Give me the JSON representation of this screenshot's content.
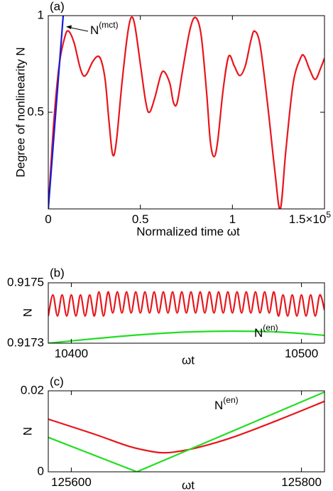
{
  "chart_data": [
    {
      "type": "line",
      "panel_label": "(a)",
      "ylabel": "Degree of nonlinearity N",
      "xlabel": "Normalized time ωt",
      "xlim": [
        0,
        1.5
      ],
      "ylim": [
        0,
        1
      ],
      "xticks": [
        0,
        0.5,
        1,
        {
          "value": 1.5,
          "label": "1.5×10"
        }
      ],
      "x_exponent": "5",
      "yticks": [
        0.5,
        1
      ],
      "series": [
        {
          "color": "#e8151b",
          "x": [
            0,
            0.03,
            0.06,
            0.09,
            0.11,
            0.14,
            0.17,
            0.19,
            0.21,
            0.24,
            0.27,
            0.29,
            0.31,
            0.33,
            0.35,
            0.37,
            0.4,
            0.43,
            0.45,
            0.47,
            0.5,
            0.53,
            0.55,
            0.58,
            0.61,
            0.63,
            0.66,
            0.68,
            0.7,
            0.73,
            0.77,
            0.8,
            0.83,
            0.86,
            0.88,
            0.9,
            0.92,
            0.95,
            0.98,
            1.01,
            1.04,
            1.07,
            1.1,
            1.12,
            1.15,
            1.19,
            1.23,
            1.26,
            1.29,
            1.33,
            1.37,
            1.39,
            1.42,
            1.45,
            1.48,
            1.5
          ],
          "values": [
            0,
            0.45,
            0.75,
            0.89,
            0.92,
            0.86,
            0.74,
            0.69,
            0.7,
            0.76,
            0.79,
            0.76,
            0.66,
            0.45,
            0.28,
            0.35,
            0.65,
            0.9,
            0.99,
            0.95,
            0.75,
            0.55,
            0.5,
            0.58,
            0.69,
            0.71,
            0.65,
            0.55,
            0.55,
            0.72,
            0.93,
            0.99,
            0.9,
            0.6,
            0.35,
            0.27,
            0.35,
            0.62,
            0.79,
            0.74,
            0.69,
            0.74,
            0.87,
            0.92,
            0.85,
            0.55,
            0.2,
            0,
            0.3,
            0.65,
            0.78,
            0.79,
            0.72,
            0.67,
            0.73,
            0.78
          ]
        },
        {
          "color": "#1a1ad8",
          "x": [
            0,
            0.081
          ],
          "values": [
            0,
            1
          ]
        }
      ],
      "annotation": {
        "text": "N",
        "superscript": "(mct)"
      }
    },
    {
      "type": "line",
      "panel_label": "(b)",
      "ylabel": "N",
      "xlabel": "ωt",
      "xlim": [
        10390,
        10510
      ],
      "ylim": [
        0.9173,
        0.9175
      ],
      "xticks": [
        10400,
        10500
      ],
      "yticks": [
        0.9173,
        0.9175
      ],
      "series": [
        {
          "color": "#e8151b",
          "x": [
            10390,
            10392,
            10394,
            10396,
            10398,
            10400,
            10402,
            10404,
            10406,
            10408,
            10410,
            10412,
            10414,
            10416,
            10418,
            10420,
            10422,
            10424,
            10426,
            10428,
            10430,
            10432,
            10434,
            10436,
            10438,
            10440,
            10442,
            10444,
            10446,
            10448,
            10450,
            10452,
            10454,
            10456,
            10458,
            10460,
            10462,
            10464,
            10466,
            10468,
            10470,
            10472,
            10474,
            10476,
            10478,
            10480,
            10482,
            10484,
            10486,
            10488,
            10490,
            10492,
            10494,
            10496,
            10498,
            10500,
            10502,
            10504,
            10506,
            10508,
            10510
          ],
          "values": [
            0.91739,
            0.91746,
            0.91739,
            0.91746,
            0.91739,
            0.91746,
            0.91739,
            0.91746,
            0.91739,
            0.91746,
            0.91739,
            0.91747,
            0.91739,
            0.91747,
            0.9174,
            0.91747,
            0.9174,
            0.91747,
            0.9174,
            0.91747,
            0.9174,
            0.91747,
            0.9174,
            0.91747,
            0.9174,
            0.91747,
            0.9174,
            0.91747,
            0.9174,
            0.91747,
            0.9174,
            0.91747,
            0.9174,
            0.91747,
            0.9174,
            0.91747,
            0.9174,
            0.91747,
            0.9174,
            0.91747,
            0.9174,
            0.91747,
            0.9174,
            0.91747,
            0.9174,
            0.91747,
            0.9174,
            0.91747,
            0.9174,
            0.91747,
            0.91739,
            0.91746,
            0.91739,
            0.91746,
            0.91739,
            0.91746,
            0.91739,
            0.91746,
            0.91739,
            0.91746,
            0.91741
          ]
        },
        {
          "color": "#22dd22",
          "x": [
            10390,
            10410,
            10430,
            10450,
            10470,
            10490,
            10510
          ],
          "values": [
            0.9173,
            0.917315,
            0.917328,
            0.917337,
            0.91734,
            0.917337,
            0.917326
          ]
        }
      ],
      "annotation": {
        "text": "N",
        "superscript": "(en)"
      }
    },
    {
      "type": "line",
      "panel_label": "(c)",
      "ylabel": "N",
      "xlabel": "ωt",
      "xlim": [
        125580,
        125820
      ],
      "ylim": [
        0,
        0.02
      ],
      "xticks": [
        125600,
        125800
      ],
      "yticks": [
        0,
        0.02
      ],
      "series": [
        {
          "color": "#e8151b",
          "x": [
            125580,
            125620,
            125650,
            125670,
            125680,
            125690,
            125710,
            125740,
            125780,
            125820
          ],
          "values": [
            0.013,
            0.0093,
            0.0063,
            0.005,
            0.0047,
            0.0049,
            0.006,
            0.0085,
            0.0128,
            0.0174
          ]
        },
        {
          "color": "#22dd22",
          "x": [
            125580,
            125657,
            125820
          ],
          "values": [
            0.0085,
            0,
            0.0197
          ]
        }
      ],
      "annotation": {
        "text": "N",
        "superscript": "(en)"
      }
    }
  ]
}
